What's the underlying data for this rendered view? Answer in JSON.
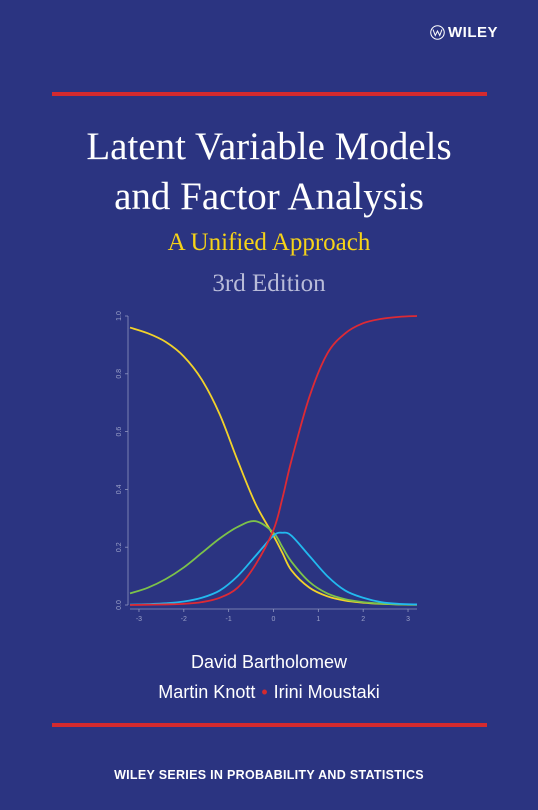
{
  "publisher": {
    "name": "WILEY",
    "icon": "wiley-logo-icon"
  },
  "title": {
    "line1": "Latent Variable Models",
    "line2": "and Factor Analysis"
  },
  "subtitle": "A Unified Approach",
  "edition": "3rd Edition",
  "authors": {
    "line1": "David Bartholomew",
    "line2_a": "Martin Knott",
    "separator": "•",
    "line2_b": "Irini Moustaki"
  },
  "series": "WILEY SERIES IN PROBABILITY AND STATISTICS",
  "colors": {
    "background": "#2b3481",
    "rule": "#d42a2f",
    "subtitle": "#f6d318",
    "curve_yellow": "#f2d22a",
    "curve_red": "#dd2a35",
    "curve_green": "#7cc24a",
    "curve_blue": "#22b9ef"
  },
  "chart_data": {
    "type": "line",
    "title": "",
    "xlabel": "",
    "ylabel": "",
    "xlim": [
      -3.2,
      3.2
    ],
    "ylim": [
      0,
      1.0
    ],
    "x_ticks": [
      "-3",
      "-2",
      "-1",
      "0",
      "1",
      "2",
      "3"
    ],
    "y_ticks": [
      "0.0",
      "0.2",
      "0.4",
      "0.6",
      "0.8",
      "1.0"
    ],
    "grid": false,
    "x": [
      -3.2,
      -2.8,
      -2.4,
      -2.0,
      -1.6,
      -1.2,
      -0.8,
      -0.4,
      0.0,
      0.2,
      0.4,
      0.8,
      1.2,
      1.6,
      2.0,
      2.4,
      2.8,
      3.2
    ],
    "series": [
      {
        "color": "#f2d22a",
        "values": [
          0.96,
          0.94,
          0.91,
          0.86,
          0.78,
          0.66,
          0.5,
          0.35,
          0.24,
          0.18,
          0.12,
          0.06,
          0.03,
          0.015,
          0.008,
          0.004,
          0.002,
          0.001
        ]
      },
      {
        "color": "#7cc24a",
        "values": [
          0.04,
          0.06,
          0.09,
          0.13,
          0.18,
          0.23,
          0.27,
          0.29,
          0.25,
          0.2,
          0.15,
          0.08,
          0.04,
          0.02,
          0.01,
          0.005,
          0.002,
          0.001
        ]
      },
      {
        "color": "#22b9ef",
        "values": [
          0.001,
          0.003,
          0.006,
          0.012,
          0.025,
          0.05,
          0.1,
          0.17,
          0.24,
          0.25,
          0.24,
          0.17,
          0.1,
          0.05,
          0.025,
          0.01,
          0.004,
          0.002
        ]
      },
      {
        "color": "#dd2a35",
        "values": [
          0.0,
          0.001,
          0.002,
          0.004,
          0.01,
          0.025,
          0.06,
          0.14,
          0.26,
          0.37,
          0.5,
          0.72,
          0.87,
          0.94,
          0.975,
          0.99,
          0.997,
          1.0
        ]
      }
    ]
  }
}
